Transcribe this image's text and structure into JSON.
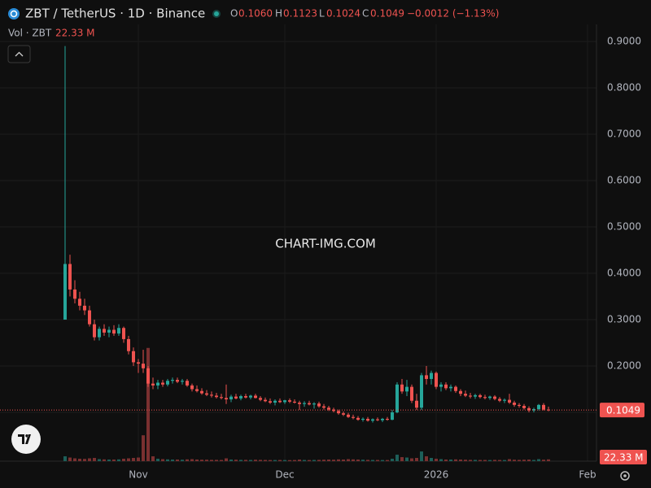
{
  "chart_data": {
    "type": "candlestick",
    "title": "ZBT / TetherUS · 1D · Binance",
    "header": {
      "o_label": "O",
      "o": "0.1060",
      "h_label": "H",
      "h": "0.1123",
      "l_label": "L",
      "l": "0.1024",
      "c_label": "C",
      "c": "0.1049",
      "change": "−0.0012 (−1.13%)"
    },
    "volume_title": "Vol · ZBT",
    "volume_last_label": "22.33 M",
    "last_price_label": "0.1049",
    "watermark": "CHART-IMG.COM",
    "up_color": "#26a69a",
    "down_color": "#ef5350",
    "volume_up_color": "#1d5f59",
    "volume_down_color": "#7a3030",
    "grid": true,
    "xlim": [
      -13.33,
      108.83
    ],
    "xticks": [
      {
        "value": 15,
        "label": "Nov"
      },
      {
        "value": 45,
        "label": "Dec"
      },
      {
        "value": 76,
        "label": "2026"
      },
      {
        "value": 107,
        "label": "Feb"
      }
    ],
    "ylim": [
      -0.0053,
      0.9368
    ],
    "yticks": [
      {
        "value": 0.1,
        "label": "0.1000"
      },
      {
        "value": 0.2,
        "label": "0.2000"
      },
      {
        "value": 0.3,
        "label": "0.3000"
      },
      {
        "value": 0.4,
        "label": "0.4000"
      },
      {
        "value": 0.5,
        "label": "0.5000"
      },
      {
        "value": 0.6,
        "label": "0.6000"
      },
      {
        "value": 0.7,
        "label": "0.7000"
      },
      {
        "value": 0.8,
        "label": "0.8000"
      },
      {
        "value": 0.9,
        "label": "0.9000"
      }
    ],
    "volume_ylim": [
      0,
      5400
    ],
    "ohlc": [
      [
        0.3,
        0.89,
        0.3,
        0.42
      ],
      [
        0.42,
        0.44,
        0.35,
        0.365
      ],
      [
        0.365,
        0.385,
        0.335,
        0.345
      ],
      [
        0.345,
        0.36,
        0.32,
        0.33
      ],
      [
        0.33,
        0.345,
        0.31,
        0.32
      ],
      [
        0.32,
        0.33,
        0.285,
        0.29
      ],
      [
        0.29,
        0.3,
        0.255,
        0.262
      ],
      [
        0.262,
        0.285,
        0.255,
        0.28
      ],
      [
        0.28,
        0.29,
        0.265,
        0.272
      ],
      [
        0.272,
        0.285,
        0.262,
        0.278
      ],
      [
        0.278,
        0.288,
        0.265,
        0.27
      ],
      [
        0.27,
        0.29,
        0.265,
        0.282
      ],
      [
        0.282,
        0.285,
        0.25,
        0.258
      ],
      [
        0.258,
        0.265,
        0.225,
        0.232
      ],
      [
        0.232,
        0.24,
        0.2,
        0.208
      ],
      [
        0.208,
        0.215,
        0.185,
        0.205
      ],
      [
        0.205,
        0.235,
        0.185,
        0.195
      ],
      [
        0.195,
        0.2,
        0.155,
        0.162
      ],
      [
        0.162,
        0.175,
        0.15,
        0.158
      ],
      [
        0.158,
        0.17,
        0.15,
        0.164
      ],
      [
        0.164,
        0.17,
        0.155,
        0.16
      ],
      [
        0.16,
        0.172,
        0.156,
        0.168
      ],
      [
        0.168,
        0.175,
        0.162,
        0.17
      ],
      [
        0.17,
        0.175,
        0.163,
        0.166
      ],
      [
        0.166,
        0.172,
        0.16,
        0.168
      ],
      [
        0.168,
        0.172,
        0.155,
        0.158
      ],
      [
        0.158,
        0.162,
        0.145,
        0.15
      ],
      [
        0.15,
        0.158,
        0.143,
        0.146
      ],
      [
        0.146,
        0.152,
        0.138,
        0.141
      ],
      [
        0.141,
        0.148,
        0.135,
        0.138
      ],
      [
        0.138,
        0.145,
        0.132,
        0.136
      ],
      [
        0.136,
        0.142,
        0.13,
        0.133
      ],
      [
        0.133,
        0.14,
        0.128,
        0.131
      ],
      [
        0.131,
        0.16,
        0.118,
        0.128
      ],
      [
        0.128,
        0.138,
        0.122,
        0.134
      ],
      [
        0.134,
        0.14,
        0.128,
        0.13
      ],
      [
        0.13,
        0.138,
        0.126,
        0.135
      ],
      [
        0.135,
        0.14,
        0.13,
        0.132
      ],
      [
        0.132,
        0.138,
        0.128,
        0.136
      ],
      [
        0.136,
        0.14,
        0.13,
        0.131
      ],
      [
        0.131,
        0.135,
        0.124,
        0.127
      ],
      [
        0.127,
        0.132,
        0.122,
        0.124
      ],
      [
        0.124,
        0.13,
        0.118,
        0.121
      ],
      [
        0.121,
        0.128,
        0.115,
        0.125
      ],
      [
        0.125,
        0.13,
        0.12,
        0.122
      ],
      [
        0.122,
        0.127,
        0.118,
        0.126
      ],
      [
        0.126,
        0.13,
        0.12,
        0.123
      ],
      [
        0.123,
        0.128,
        0.119,
        0.121
      ],
      [
        0.121,
        0.125,
        0.105,
        0.118
      ],
      [
        0.118,
        0.124,
        0.112,
        0.12
      ],
      [
        0.12,
        0.125,
        0.115,
        0.117
      ],
      [
        0.117,
        0.122,
        0.108,
        0.119
      ],
      [
        0.119,
        0.123,
        0.11,
        0.113
      ],
      [
        0.113,
        0.118,
        0.106,
        0.11
      ],
      [
        0.11,
        0.114,
        0.103,
        0.106
      ],
      [
        0.106,
        0.11,
        0.1,
        0.103
      ],
      [
        0.103,
        0.106,
        0.095,
        0.098
      ],
      [
        0.098,
        0.102,
        0.092,
        0.095
      ],
      [
        0.095,
        0.099,
        0.088,
        0.09
      ],
      [
        0.09,
        0.095,
        0.085,
        0.088
      ],
      [
        0.088,
        0.092,
        0.082,
        0.084
      ],
      [
        0.084,
        0.089,
        0.08,
        0.086
      ],
      [
        0.086,
        0.09,
        0.08,
        0.082
      ],
      [
        0.082,
        0.087,
        0.078,
        0.085
      ],
      [
        0.085,
        0.089,
        0.081,
        0.083
      ],
      [
        0.083,
        0.088,
        0.079,
        0.086
      ],
      [
        0.086,
        0.09,
        0.082,
        0.084
      ],
      [
        0.084,
        0.105,
        0.083,
        0.1
      ],
      [
        0.1,
        0.165,
        0.098,
        0.16
      ],
      [
        0.16,
        0.172,
        0.14,
        0.145
      ],
      [
        0.145,
        0.17,
        0.135,
        0.155
      ],
      [
        0.155,
        0.16,
        0.12,
        0.125
      ],
      [
        0.125,
        0.14,
        0.105,
        0.11
      ],
      [
        0.11,
        0.185,
        0.105,
        0.18
      ],
      [
        0.18,
        0.2,
        0.16,
        0.172
      ],
      [
        0.172,
        0.19,
        0.16,
        0.185
      ],
      [
        0.185,
        0.188,
        0.15,
        0.155
      ],
      [
        0.155,
        0.165,
        0.145,
        0.16
      ],
      [
        0.16,
        0.165,
        0.148,
        0.152
      ],
      [
        0.152,
        0.16,
        0.145,
        0.155
      ],
      [
        0.155,
        0.158,
        0.142,
        0.146
      ],
      [
        0.146,
        0.15,
        0.135,
        0.14
      ],
      [
        0.14,
        0.147,
        0.133,
        0.136
      ],
      [
        0.136,
        0.142,
        0.13,
        0.134
      ],
      [
        0.134,
        0.14,
        0.129,
        0.137
      ],
      [
        0.137,
        0.14,
        0.13,
        0.133
      ],
      [
        0.133,
        0.138,
        0.128,
        0.131
      ],
      [
        0.131,
        0.136,
        0.127,
        0.134
      ],
      [
        0.134,
        0.137,
        0.126,
        0.129
      ],
      [
        0.129,
        0.133,
        0.122,
        0.125
      ],
      [
        0.125,
        0.13,
        0.12,
        0.127
      ],
      [
        0.127,
        0.14,
        0.118,
        0.121
      ],
      [
        0.121,
        0.125,
        0.112,
        0.116
      ],
      [
        0.116,
        0.12,
        0.11,
        0.114
      ],
      [
        0.114,
        0.118,
        0.106,
        0.109
      ],
      [
        0.109,
        0.113,
        0.1,
        0.104
      ],
      [
        0.104,
        0.11,
        0.1,
        0.107
      ],
      [
        0.107,
        0.118,
        0.104,
        0.116
      ],
      [
        0.116,
        0.12,
        0.104,
        0.106
      ],
      [
        0.106,
        0.1123,
        0.1024,
        0.1049
      ]
    ],
    "volume": [
      60,
      45,
      35,
      30,
      28,
      35,
      40,
      25,
      22,
      20,
      20,
      22,
      30,
      35,
      40,
      45,
      320,
      1400,
      60,
      30,
      25,
      22,
      20,
      20,
      18,
      22,
      25,
      20,
      18,
      18,
      16,
      16,
      15,
      35,
      20,
      18,
      16,
      16,
      15,
      18,
      16,
      15,
      14,
      14,
      15,
      14,
      13,
      14,
      20,
      15,
      14,
      15,
      16,
      18,
      20,
      18,
      22,
      20,
      25,
      22,
      20,
      18,
      16,
      15,
      15,
      14,
      14,
      30,
      80,
      50,
      45,
      35,
      40,
      120,
      60,
      40,
      30,
      25,
      20,
      20,
      22,
      20,
      18,
      16,
      16,
      15,
      15,
      14,
      16,
      15,
      14,
      25,
      18,
      16,
      18,
      20,
      15,
      25,
      18,
      22.33
    ]
  }
}
